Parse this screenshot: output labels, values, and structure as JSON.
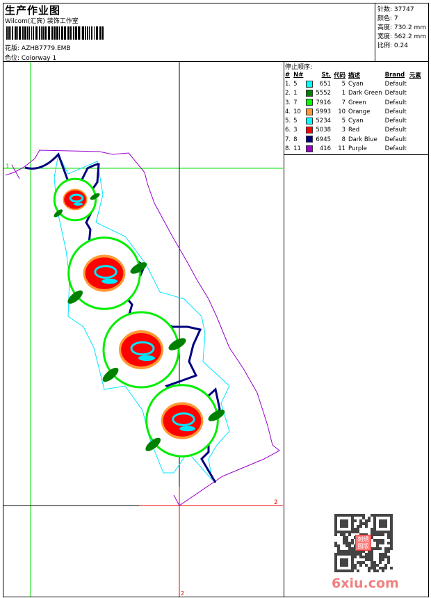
{
  "header": {
    "title": "生产作业图",
    "studio": "Wilcom(汇宾) 装饰工作室",
    "design_label": "花版:",
    "design_value": "AZHB7779.EMB",
    "colorway_label": "色位:",
    "colorway_value": "Colorway 1"
  },
  "info": {
    "stitches": {
      "label": "针数:",
      "value": "37747"
    },
    "colors": {
      "label": "颜色:",
      "value": "7"
    },
    "height": {
      "label": "高度:",
      "value": "730.2 mm"
    },
    "width": {
      "label": "宽度:",
      "value": "562.2 mm"
    },
    "scale": {
      "label": "比例:",
      "value": "0.24"
    }
  },
  "stop_sequence": {
    "label": "停止顺序:",
    "headers": {
      "num": "#",
      "n": "N#",
      "st": "St.",
      "code": "代码",
      "desc": "描述",
      "brand": "Brand",
      "element": "元素"
    },
    "rows": [
      {
        "num": "1.",
        "n": "5",
        "color": "#00FFFF",
        "st": "651",
        "code": "5",
        "desc": "Cyan",
        "brand": "Default"
      },
      {
        "num": "2.",
        "n": "1",
        "color": "#008000",
        "st": "5552",
        "code": "1",
        "desc": "Dark Green",
        "brand": "Default"
      },
      {
        "num": "3.",
        "n": "7",
        "color": "#00FF00",
        "st": "7916",
        "code": "7",
        "desc": "Green",
        "brand": "Default"
      },
      {
        "num": "4.",
        "n": "10",
        "color": "#FF9933",
        "st": "5993",
        "code": "10",
        "desc": "Orange",
        "brand": "Default"
      },
      {
        "num": "5.",
        "n": "5",
        "color": "#00FFFF",
        "st": "5234",
        "code": "5",
        "desc": "Cyan",
        "brand": "Default"
      },
      {
        "num": "6.",
        "n": "3",
        "color": "#FF0000",
        "st": "5038",
        "code": "3",
        "desc": "Red",
        "brand": "Default"
      },
      {
        "num": "7.",
        "n": "8",
        "color": "#000080",
        "st": "6945",
        "code": "8",
        "desc": "Dark Blue",
        "brand": "Default"
      },
      {
        "num": "8.",
        "n": "11",
        "color": "#9900CC",
        "st": "416",
        "code": "11",
        "desc": "Purple",
        "brand": "Default"
      }
    ]
  },
  "markers": {
    "start": "1",
    "end_x": "2",
    "end_y": "2"
  },
  "watermark": {
    "site": "6xiu.com",
    "seal": "刺绣图版"
  }
}
